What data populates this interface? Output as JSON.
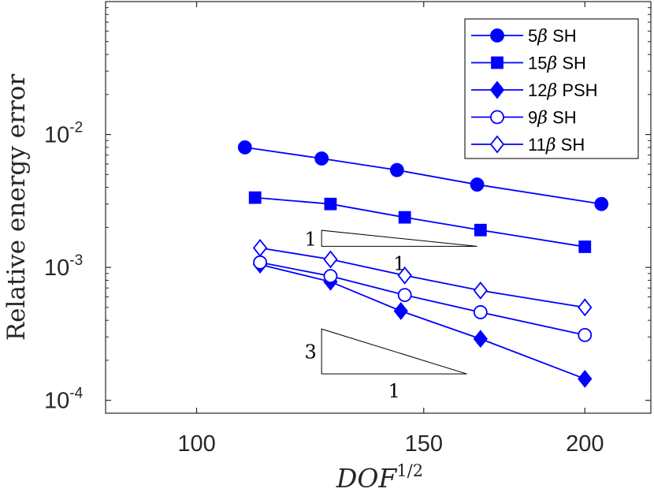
{
  "chart_data": {
    "type": "line",
    "xscale": "log",
    "yscale": "log",
    "xlabel": "DOF",
    "xlabel_sup": "1/2",
    "ylabel": "Relative energy error",
    "xlim": [
      85,
      225
    ],
    "ylim": [
      8e-05,
      0.1
    ],
    "x_ticks": [
      100,
      150,
      200
    ],
    "x_tick_labels": [
      "100",
      "150",
      "200"
    ],
    "y_ticks": [
      0.0001,
      0.001,
      0.01
    ],
    "y_tick_labels": [
      {
        "base": "10",
        "exp": "-4"
      },
      {
        "base": "10",
        "exp": "-3"
      },
      {
        "base": "10",
        "exp": "-2"
      }
    ],
    "color": "#0000FF",
    "series": [
      {
        "name": "5β SH",
        "prefix": "5",
        "suffix": " SH",
        "marker": "circle",
        "filled": true,
        "x": [
          109,
          125,
          143,
          165,
          206
        ],
        "y": [
          0.008,
          0.0066,
          0.0054,
          0.0042,
          0.003
        ]
      },
      {
        "name": "15β SH",
        "prefix": "15",
        "suffix": " SH",
        "marker": "square",
        "filled": true,
        "x": [
          111,
          127,
          145,
          166,
          200
        ],
        "y": [
          0.00335,
          0.003,
          0.00238,
          0.00191,
          0.00143
        ]
      },
      {
        "name": "12β PSH",
        "prefix": "12",
        "suffix": " PSH",
        "marker": "diamond",
        "filled": true,
        "x": [
          112,
          127,
          144,
          166,
          200
        ],
        "y": [
          0.00105,
          0.00078,
          0.00047,
          0.00029,
          0.000145
        ]
      },
      {
        "name": "9β SH",
        "prefix": "9",
        "suffix": " SH",
        "marker": "circle",
        "filled": false,
        "x": [
          112,
          127,
          145,
          166,
          200
        ],
        "y": [
          0.00109,
          0.00086,
          0.00062,
          0.00046,
          0.00031
        ]
      },
      {
        "name": "11β SH",
        "prefix": "11",
        "suffix": " SH",
        "marker": "diamond",
        "filled": false,
        "x": [
          112,
          127,
          145,
          166,
          200
        ],
        "y": [
          0.0014,
          0.00115,
          0.00087,
          0.00067,
          0.0005
        ]
      }
    ],
    "legend_position": "top-right",
    "beta_symbol": "β",
    "annotations": [
      {
        "name": "slope-triangle-1",
        "x_from": 125,
        "x_to": 165,
        "y_base": 0.00144,
        "slope": 1,
        "vertical_label": "1",
        "horizontal_label": "1"
      },
      {
        "name": "slope-triangle-3",
        "x_from": 125,
        "x_to": 162,
        "y_base": 0.000158,
        "slope": 3,
        "vertical_label": "3",
        "horizontal_label": "1"
      }
    ]
  }
}
